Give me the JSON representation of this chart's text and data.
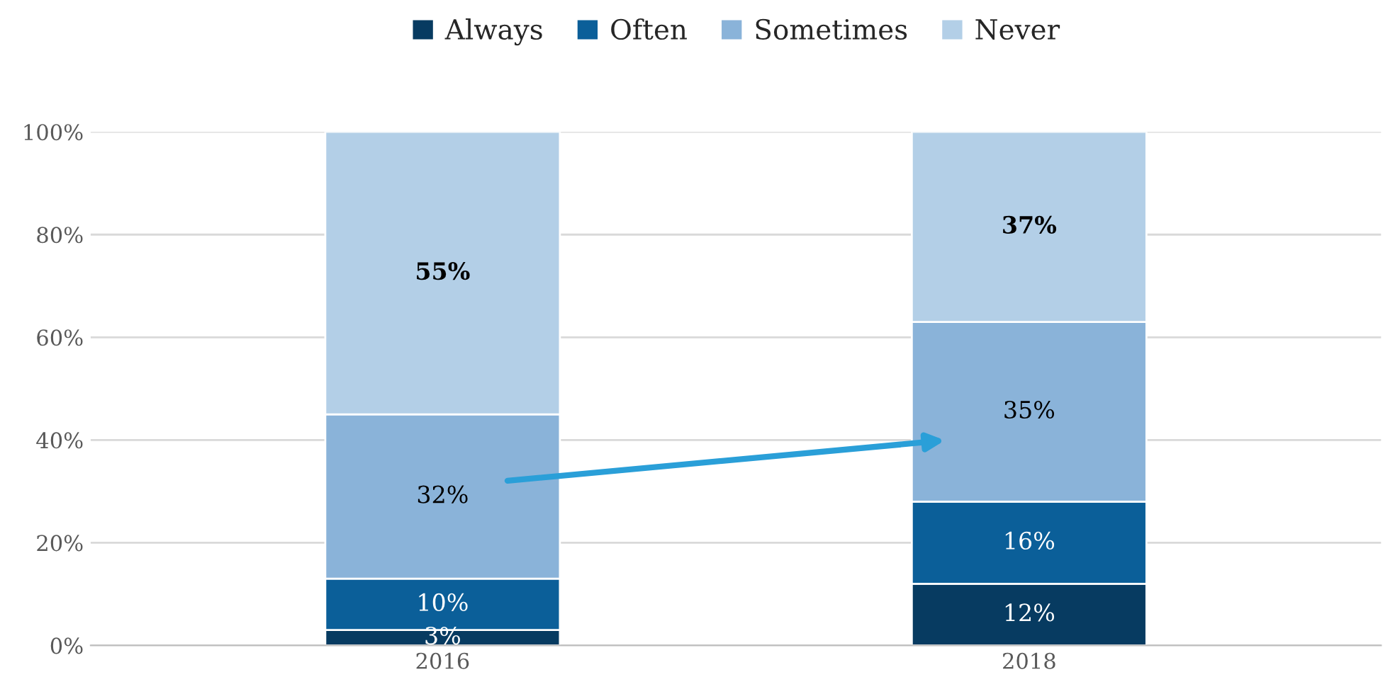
{
  "chart_data": {
    "type": "bar",
    "stacked": true,
    "categories": [
      "2016",
      "2018"
    ],
    "series": [
      {
        "name": "Always",
        "color": "#073b61",
        "values": [
          3,
          12
        ],
        "value_labels": [
          "3%",
          "12%"
        ]
      },
      {
        "name": "Often",
        "color": "#0b5f99",
        "values": [
          10,
          16
        ],
        "value_labels": [
          "10%",
          "16%"
        ]
      },
      {
        "name": "Sometimes",
        "color": "#8ab3d9",
        "values": [
          32,
          35
        ],
        "value_labels": [
          "32%",
          "35%"
        ]
      },
      {
        "name": "Never",
        "color": "#b3cfe7",
        "values": [
          55,
          37
        ],
        "value_labels": [
          "55%",
          "37%"
        ]
      }
    ],
    "ylim": [
      0,
      100
    ],
    "yticks": [
      {
        "value": 0,
        "label": "0%"
      },
      {
        "value": 20,
        "label": "20%"
      },
      {
        "value": 40,
        "label": "40%"
      },
      {
        "value": 60,
        "label": "60%"
      },
      {
        "value": 80,
        "label": "80%"
      },
      {
        "value": 100,
        "label": "100%"
      }
    ],
    "grid": "y",
    "legend": "top"
  }
}
